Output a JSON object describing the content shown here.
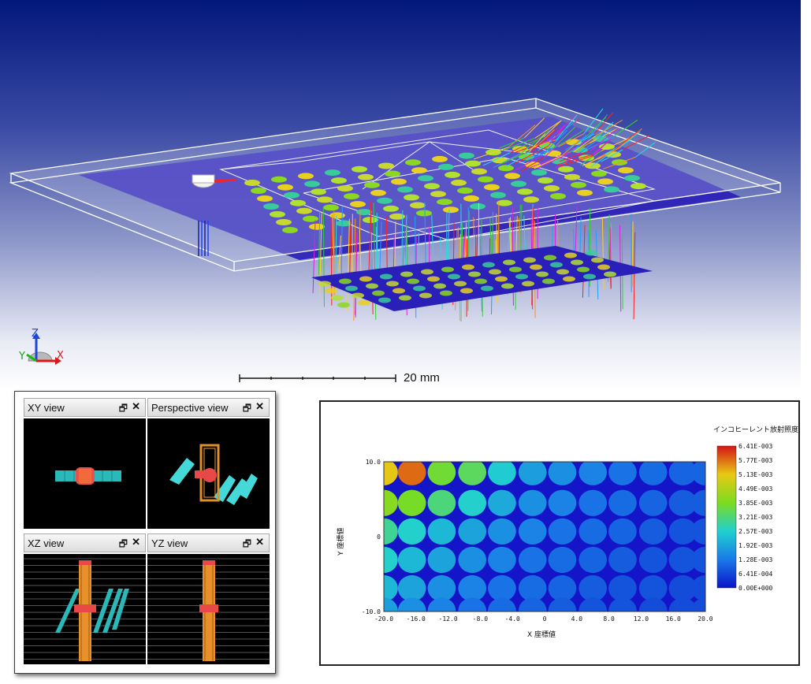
{
  "viewport": {
    "axis_triad": {
      "x": "X",
      "y": "Y",
      "z": "Z"
    },
    "scale_bar_label": "20 mm"
  },
  "views_window": {
    "panes": [
      {
        "title": "XY view"
      },
      {
        "title": "Perspective view"
      },
      {
        "title": "XZ view"
      },
      {
        "title": "YZ view"
      }
    ],
    "restore_glyph": "🗗",
    "close_glyph": "✕"
  },
  "chart_data": {
    "type": "heatmap",
    "title": "インコヒーレント放射照度",
    "xlabel": "X 座標値",
    "ylabel": "Y 座標値",
    "xlim": [
      -20,
      20
    ],
    "ylim": [
      -10,
      10
    ],
    "x_ticks": [
      "-20.0",
      "-16.0",
      "-12.0",
      "-8.0",
      "-4.0",
      "0",
      "4.0",
      "8.0",
      "12.0",
      "16.0",
      "20.0"
    ],
    "y_ticks": [
      "10.0",
      "0",
      "-10.0"
    ],
    "colorbar_ticks": [
      "6.41E-003",
      "5.77E-003",
      "5.13E-003",
      "4.49E-003",
      "3.85E-003",
      "3.21E-003",
      "2.57E-003",
      "1.92E-003",
      "1.28E-003",
      "6.41E-004",
      "0.00E+000"
    ],
    "colorbar_range": [
      0,
      0.00641
    ],
    "spot_grid": {
      "columns_x": [
        -20,
        -16.5,
        -12.8,
        -9.0,
        -5.3,
        -1.5,
        2.2,
        6.0,
        9.7,
        13.5,
        17.2,
        20
      ],
      "rows_y": [
        8.6,
        4.5,
        0.7,
        -3.1,
        -6.9,
        -9.9
      ],
      "values": [
        [
          0.0051,
          0.0058,
          0.0037,
          0.0034,
          0.0025,
          0.0018,
          0.0016,
          0.0014,
          0.0012,
          0.0011,
          0.001,
          0.001
        ],
        [
          0.004,
          0.0038,
          0.0032,
          0.0026,
          0.002,
          0.0016,
          0.0014,
          0.0012,
          0.0011,
          0.001,
          0.0009,
          0.0009
        ],
        [
          0.003,
          0.0026,
          0.0022,
          0.0019,
          0.0016,
          0.0014,
          0.0012,
          0.0011,
          0.001,
          0.0009,
          0.0008,
          0.0008
        ],
        [
          0.0026,
          0.0022,
          0.0019,
          0.0016,
          0.0014,
          0.0012,
          0.0011,
          0.001,
          0.0009,
          0.0008,
          0.0008,
          0.0008
        ],
        [
          0.0022,
          0.0019,
          0.0016,
          0.0014,
          0.0012,
          0.0011,
          0.001,
          0.0009,
          0.0008,
          0.0008,
          0.0007,
          0.0007
        ],
        [
          0.0018,
          0.0016,
          0.0014,
          0.0012,
          0.0011,
          0.001,
          0.0009,
          0.0008,
          0.0008,
          0.0007,
          0.0007,
          0.0007
        ]
      ]
    }
  }
}
